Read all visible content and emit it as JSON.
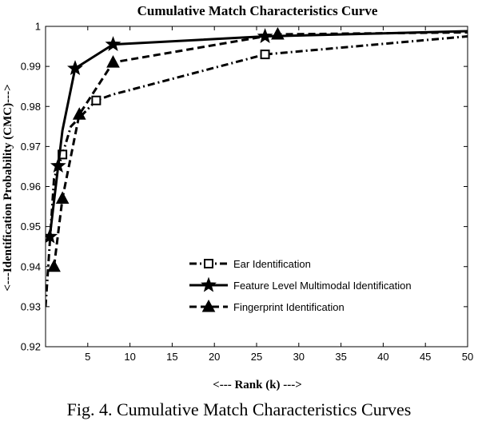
{
  "caption": "Fig. 4. Cumulative Match Characteristics Curves",
  "chart_data": {
    "type": "line",
    "title": "Cumulative Match Characteristics Curve",
    "xlabel": "<--- Rank (k) --->",
    "ylabel": "<---Identification Probability (CMC)--->",
    "xlim": [
      0,
      50
    ],
    "ylim": [
      0.92,
      1
    ],
    "xticks": [
      "5",
      "10",
      "15",
      "20",
      "25",
      "30",
      "35",
      "40",
      "45",
      "50"
    ],
    "yticks": [
      "0.92",
      "0.93",
      "0.94",
      "0.95",
      "0.96",
      "0.97",
      "0.98",
      "0.99",
      "1"
    ],
    "grid": false,
    "legend_position": "bottom-right",
    "series": [
      {
        "name": "Ear Identification",
        "line_style": "dash-dot",
        "marker": "square",
        "x": [
          0,
          1,
          2,
          3,
          6,
          8,
          26,
          50
        ],
        "y": [
          0.93,
          0.962,
          0.968,
          0.975,
          0.9815,
          0.983,
          0.993,
          0.9975
        ],
        "markers_at": [
          2,
          6,
          26
        ]
      },
      {
        "name": "Feature Level Multimodal Identification",
        "line_style": "solid",
        "marker": "star",
        "x": [
          0.5,
          2,
          3.5,
          8,
          26,
          50
        ],
        "y": [
          0.9475,
          0.974,
          0.9895,
          0.9955,
          0.9975,
          0.9988
        ],
        "markers_at": [
          0.5,
          1.5,
          3.5,
          8,
          26
        ]
      },
      {
        "name": "Fingerprint Identification",
        "line_style": "dashed",
        "marker": "triangle",
        "x": [
          1,
          2,
          4,
          8,
          26,
          27.5,
          50
        ],
        "y": [
          0.94,
          0.957,
          0.978,
          0.991,
          0.9975,
          0.998,
          0.9985
        ],
        "markers_at": [
          1,
          2,
          4,
          8,
          27.5
        ]
      }
    ]
  }
}
